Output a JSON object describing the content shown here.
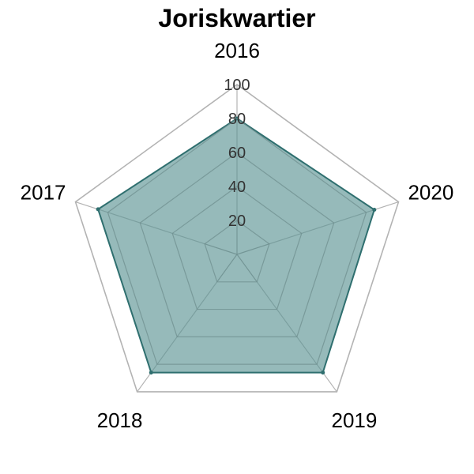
{
  "chart_data": {
    "type": "radar",
    "title": "Joriskwartier",
    "axes": [
      "2016",
      "2017",
      "2018",
      "2019",
      "2020"
    ],
    "series": [
      {
        "values": [
          80,
          86,
          86,
          86,
          85
        ]
      }
    ],
    "rmax": 100,
    "ticks": [
      20,
      40,
      60,
      80,
      100
    ],
    "tick_labels": [
      "20",
      "40",
      "60",
      "80",
      "100"
    ],
    "grid": true,
    "legend": false,
    "colors": {
      "fill": "#5e9595",
      "line": "#2f6f6f",
      "outer_grid": "#b3b3b3",
      "inner_grid": "#6f8f8f"
    }
  }
}
